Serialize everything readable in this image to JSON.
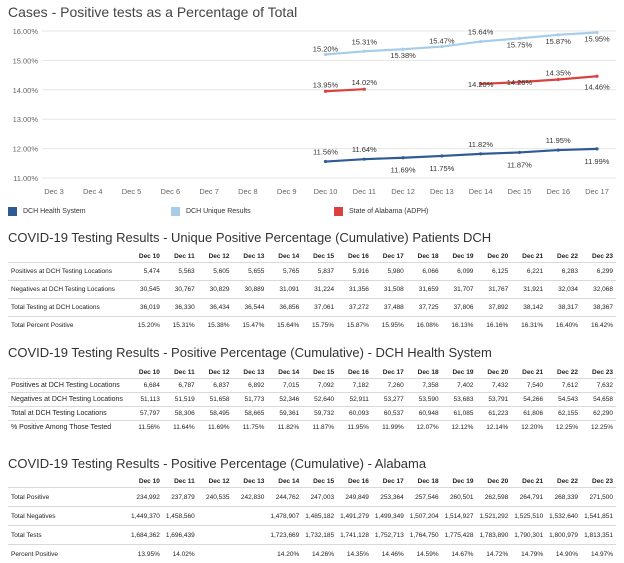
{
  "chart_data": {
    "type": "line",
    "title": "Cases - Positive tests as a Percentage of Total",
    "x": [
      "Dec 3",
      "Dec 4",
      "Dec 5",
      "Dec 6",
      "Dec 7",
      "Dec 8",
      "Dec 9",
      "Dec 10",
      "Dec 11",
      "Dec 12",
      "Dec 13",
      "Dec 14",
      "Dec 15",
      "Dec 16",
      "Dec 17"
    ],
    "y_ticks": [
      "11.00%",
      "12.00%",
      "13.00%",
      "14.00%",
      "15.00%",
      "16.00%"
    ],
    "ylim": [
      11.0,
      16.0
    ],
    "grid": true,
    "legend_position": "bottom",
    "series": [
      {
        "name": "DCH Health System",
        "color": "#2f5a94",
        "values": [
          null,
          null,
          null,
          null,
          null,
          null,
          null,
          11.56,
          11.64,
          11.69,
          11.75,
          11.82,
          11.87,
          11.95,
          11.99
        ],
        "labels": [
          null,
          null,
          null,
          null,
          null,
          null,
          null,
          "11.56%",
          "11.64%",
          "11.69%",
          "11.75%",
          "11.82%",
          "11.87%",
          "11.95%",
          "11.99%"
        ]
      },
      {
        "name": "DCH Unique Results",
        "color": "#a8cde8",
        "values": [
          null,
          null,
          null,
          null,
          null,
          null,
          null,
          15.2,
          15.31,
          15.38,
          15.47,
          15.64,
          15.75,
          15.87,
          15.95
        ],
        "labels": [
          null,
          null,
          null,
          null,
          null,
          null,
          null,
          "15.20%",
          "15.31%",
          "15.38%",
          "15.47%",
          "15.64%",
          "15.75%",
          "15.87%",
          "15.95%"
        ]
      },
      {
        "name": "State of Alabama (ADPH)",
        "color": "#d9423e",
        "values": [
          null,
          null,
          null,
          null,
          null,
          null,
          null,
          13.95,
          14.02,
          null,
          null,
          14.2,
          14.26,
          14.35,
          14.46
        ],
        "labels": [
          null,
          null,
          null,
          null,
          null,
          null,
          null,
          "13.95%",
          "14.02%",
          null,
          null,
          "14.20%",
          "14.26%",
          "14.35%",
          "14.46%"
        ]
      }
    ]
  },
  "tables": {
    "unique": {
      "title": "COVID-19 Testing Results - Unique Positive Percentage (Cumulative) Patients DCH",
      "columns": [
        "Dec 10",
        "Dec 11",
        "Dec 12",
        "Dec 13",
        "Dec 14",
        "Dec 15",
        "Dec 16",
        "Dec 17",
        "Dec 18",
        "Dec 19",
        "Dec 20",
        "Dec 21",
        "Dec 22",
        "Dec 23"
      ],
      "rows": [
        {
          "label": "Positives at DCH Testing Locations",
          "values": [
            "5,474",
            "5,563",
            "5,605",
            "5,655",
            "5,765",
            "5,837",
            "5,916",
            "5,980",
            "6,066",
            "6,099",
            "6,125",
            "6,221",
            "6,283",
            "6,299"
          ]
        },
        {
          "label": "Negatives at DCH Testing Locations",
          "values": [
            "30,545",
            "30,767",
            "30,829",
            "30,889",
            "31,091",
            "31,224",
            "31,356",
            "31,508",
            "31,659",
            "31,707",
            "31,767",
            "31,921",
            "32,034",
            "32,068"
          ]
        },
        {
          "label": "Total Testing at DCH Locations",
          "values": [
            "36,019",
            "36,330",
            "36,434",
            "36,544",
            "36,856",
            "37,061",
            "37,272",
            "37,488",
            "37,725",
            "37,806",
            "37,892",
            "38,142",
            "38,317",
            "38,367"
          ]
        },
        {
          "label": "Total Percent Positive",
          "values": [
            "15.20%",
            "15.31%",
            "15.38%",
            "15.47%",
            "15.64%",
            "15.75%",
            "15.87%",
            "15.95%",
            "16.08%",
            "16.13%",
            "16.16%",
            "16.31%",
            "16.40%",
            "16.42%"
          ]
        }
      ]
    },
    "dch": {
      "title": "COVID-19 Testing Results - Positive Percentage (Cumulative) - DCH Health System",
      "columns": [
        "Dec 10",
        "Dec 11",
        "Dec 12",
        "Dec 13",
        "Dec 14",
        "Dec 15",
        "Dec 16",
        "Dec 17",
        "Dec 18",
        "Dec 19",
        "Dec 20",
        "Dec 21",
        "Dec 22",
        "Dec 23"
      ],
      "rows": [
        {
          "label": "Positives at DCH Testing Locations",
          "values": [
            "6,684",
            "6,787",
            "6,837",
            "6,892",
            "7,015",
            "7,092",
            "7,182",
            "7,260",
            "7,358",
            "7,402",
            "7,432",
            "7,540",
            "7,612",
            "7,632"
          ]
        },
        {
          "label": "Negatives at DCH Testing Locations",
          "values": [
            "51,113",
            "51,519",
            "51,658",
            "51,773",
            "52,346",
            "52,640",
            "52,911",
            "53,277",
            "53,590",
            "53,683",
            "53,791",
            "54,266",
            "54,543",
            "54,658"
          ]
        },
        {
          "label": "Total at DCH Testing Locations",
          "values": [
            "57,797",
            "58,306",
            "58,495",
            "58,665",
            "59,361",
            "59,732",
            "60,093",
            "60,537",
            "60,948",
            "61,085",
            "61,223",
            "61,806",
            "62,155",
            "62,290"
          ]
        },
        {
          "label": "% Positive Among Those Tested",
          "values": [
            "11.56%",
            "11.64%",
            "11.69%",
            "11.75%",
            "11.82%",
            "11.87%",
            "11.95%",
            "11.99%",
            "12.07%",
            "12.12%",
            "12.14%",
            "12.20%",
            "12.25%",
            "12.25%"
          ]
        }
      ]
    },
    "alabama": {
      "title": "COVID-19 Testing Results - Positive Percentage (Cumulative) - Alabama",
      "columns": [
        "Dec 10",
        "Dec 11",
        "Dec 12",
        "Dec 13",
        "Dec 14",
        "Dec 15",
        "Dec 16",
        "Dec 17",
        "Dec 18",
        "Dec 19",
        "Dec 20",
        "Dec 21",
        "Dec 22",
        "Dec 23"
      ],
      "rows": [
        {
          "label": "Total Positive",
          "values": [
            "234,992",
            "237,879",
            "240,535",
            "242,830",
            "244,762",
            "247,003",
            "249,849",
            "253,364",
            "257,546",
            "260,501",
            "262,598",
            "264,791",
            "268,339",
            "271,500"
          ]
        },
        {
          "label": "Total Negatives",
          "values": [
            "1,449,370",
            "1,458,560",
            "",
            "",
            "1,478,907",
            "1,485,182",
            "1,491,279",
            "1,499,349",
            "1,507,204",
            "1,514,927",
            "1,521,292",
            "1,525,510",
            "1,532,640",
            "1,541,851"
          ]
        },
        {
          "label": "Total Tests",
          "values": [
            "1,684,362",
            "1,696,439",
            "",
            "",
            "1,723,669",
            "1,732,185",
            "1,741,128",
            "1,752,713",
            "1,764,750",
            "1,775,428",
            "1,783,890",
            "1,790,301",
            "1,800,979",
            "1,813,351"
          ]
        },
        {
          "label": "Percent Positive",
          "values": [
            "13.95%",
            "14.02%",
            "",
            "",
            "14.20%",
            "14.26%",
            "14.35%",
            "14.46%",
            "14.59%",
            "14.67%",
            "14.72%",
            "14.79%",
            "14.90%",
            "14.97%"
          ]
        }
      ]
    }
  }
}
